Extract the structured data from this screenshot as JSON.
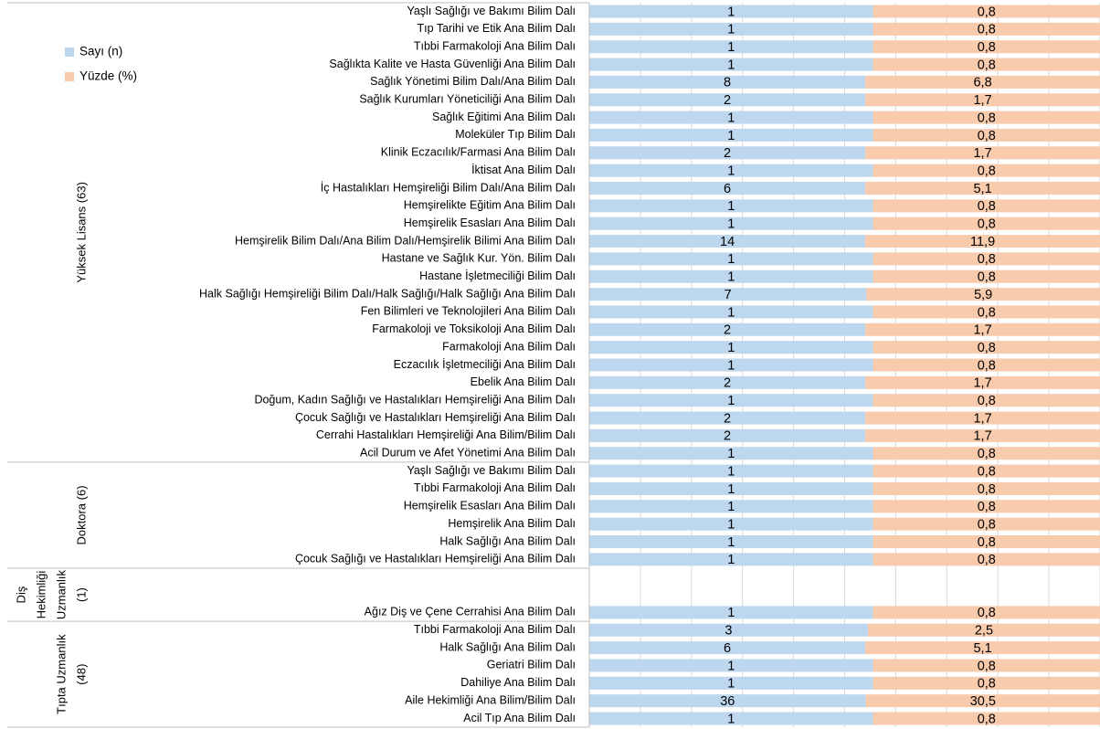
{
  "chart_data": {
    "type": "bar100h",
    "groups": [
      {
        "lines": [
          "Yüksek Lisans (63)"
        ],
        "categories": [
          "Yaşlı Sağlığı ve Bakımı Bilim Dalı",
          "Tıp Tarihi ve Etik Ana Bilim Dalı",
          "Tıbbi Farmakoloji Ana Bilim Dalı",
          "Sağlıkta Kalite ve Hasta Güvenliği Ana Bilim Dalı",
          "Sağlık Yönetimi Bilim Dalı/Ana Bilim Dalı",
          "Sağlık Kurumları Yöneticiliği Ana Bilim Dalı",
          "Sağlık Eğitimi Ana Bilim Dalı",
          "Moleküler Tıp Bilim Dalı",
          "Klinik Eczacılık/Farmasi Ana Bilim Dalı",
          "İktisat Ana Bilim Dalı",
          "İç Hastalıkları Hemşireliği Bilim Dalı/Ana Bilim Dalı",
          "Hemşirelikte Eğitim Ana Bilim Dalı",
          "Hemşirelik Esasları Ana Bilim Dalı",
          "Hemşirelik Bilim Dalı/Ana Bilim Dalı/Hemşirelik Bilimi Ana Bilim Dalı",
          "Hastane ve Sağlık Kur. Yön. Bilim Dalı",
          "Hastane İşletmeciliği Bilim Dalı",
          "Halk Sağlığı Hemşireliği Bilim Dalı/Halk Sağlığı/Halk Sağlığı Ana Bilim Dalı",
          "Fen Bilimleri ve Teknolojileri Ana Bilim Dalı",
          "Farmakoloji ve Toksikoloji Ana Bilim Dalı",
          "Farmakoloji Ana Bilim Dalı",
          "Eczacılık İşletmeciliği Ana Bilim Dalı",
          "Ebelik Ana Bilim Dalı",
          "Doğum, Kadın Sağlığı ve Hastalıkları Hemşireliği Ana Bilim Dalı",
          "Çocuk Sağlığı ve Hastalıkları Hemşireliği Ana Bilim Dalı",
          "Cerrahi Hastalıkları Hemşireliği Ana Bilim/Bilim Dalı",
          "Acil Durum ve Afet Yönetimi Ana Bilim Dalı"
        ]
      },
      {
        "lines": [
          "Doktora (6)"
        ],
        "categories": [
          "Yaşlı Sağlığı ve Bakımı Bilim Dalı",
          "Tıbbi Farmakoloji Ana Bilim Dalı",
          "Hemşirelik Esasları Ana Bilim Dalı",
          "Hemşirelik Ana Bilim Dalı",
          "Halk Sağlığı Ana Bilim Dalı",
          "Çocuk Sağlığı ve Hastalıkları Hemşireliği Ana Bilim Dalı"
        ]
      },
      {
        "lines": [
          "Diş",
          "Hekimliği",
          "Uzmanlık",
          "(1)"
        ],
        "categories": [
          null,
          null,
          "Ağız Diş ve Çene Cerrahisi Ana Bilim Dalı"
        ]
      },
      {
        "lines": [
          "Tıpta Uzmanlık",
          "(48)"
        ],
        "categories": [
          "Tıbbi Farmakoloji Ana Bilim Dalı",
          "Halk Sağlığı Ana Bilim Dalı",
          "Geriatri Bilim Dalı",
          "Dahiliye Ana Bilim Dalı",
          "Aile Hekimliği Ana Bilim/Bilim Dalı",
          "Acil Tıp Ana Bilim Dalı"
        ]
      }
    ],
    "series": [
      {
        "name": "Sayı (n)",
        "color": "#bdd7ee",
        "values": [
          1,
          1,
          1,
          1,
          8,
          2,
          1,
          1,
          2,
          1,
          6,
          1,
          1,
          14,
          1,
          1,
          7,
          1,
          2,
          1,
          1,
          2,
          1,
          2,
          2,
          1,
          1,
          1,
          1,
          1,
          1,
          1,
          null,
          null,
          1,
          3,
          6,
          1,
          1,
          36,
          1
        ]
      },
      {
        "name": "Yüzde (%)",
        "color": "#f8cbad",
        "values": [
          0.8,
          0.8,
          0.8,
          0.8,
          6.8,
          1.7,
          0.8,
          0.8,
          1.7,
          0.8,
          5.1,
          0.8,
          0.8,
          11.9,
          0.8,
          0.8,
          5.9,
          0.8,
          1.7,
          0.8,
          0.8,
          1.7,
          0.8,
          1.7,
          1.7,
          0.8,
          0.8,
          0.8,
          0.8,
          0.8,
          0.8,
          0.8,
          null,
          null,
          0.8,
          2.5,
          5.1,
          0.8,
          0.8,
          30.5,
          0.8
        ],
        "value_labels": [
          "0,8",
          "0,8",
          "0,8",
          "0,8",
          "6,8",
          "1,7",
          "0,8",
          "0,8",
          "1,7",
          "0,8",
          "5,1",
          "0,8",
          "0,8",
          "11,9",
          "0,8",
          "0,8",
          "5,9",
          "0,8",
          "1,7",
          "0,8",
          "0,8",
          "1,7",
          "0,8",
          "1,7",
          "1,7",
          "0,8",
          "0,8",
          "0,8",
          "0,8",
          "0,8",
          "0,8",
          "0,8",
          null,
          null,
          "0,8",
          "2,5",
          "5,1",
          "0,8",
          "0,8",
          "30,5",
          "0,8"
        ]
      }
    ],
    "xlim": [
      0,
      100
    ],
    "xticks": [
      0,
      10,
      20,
      30,
      40,
      50,
      60,
      70,
      80,
      90,
      100
    ],
    "grid": true,
    "legend": "top-left"
  }
}
